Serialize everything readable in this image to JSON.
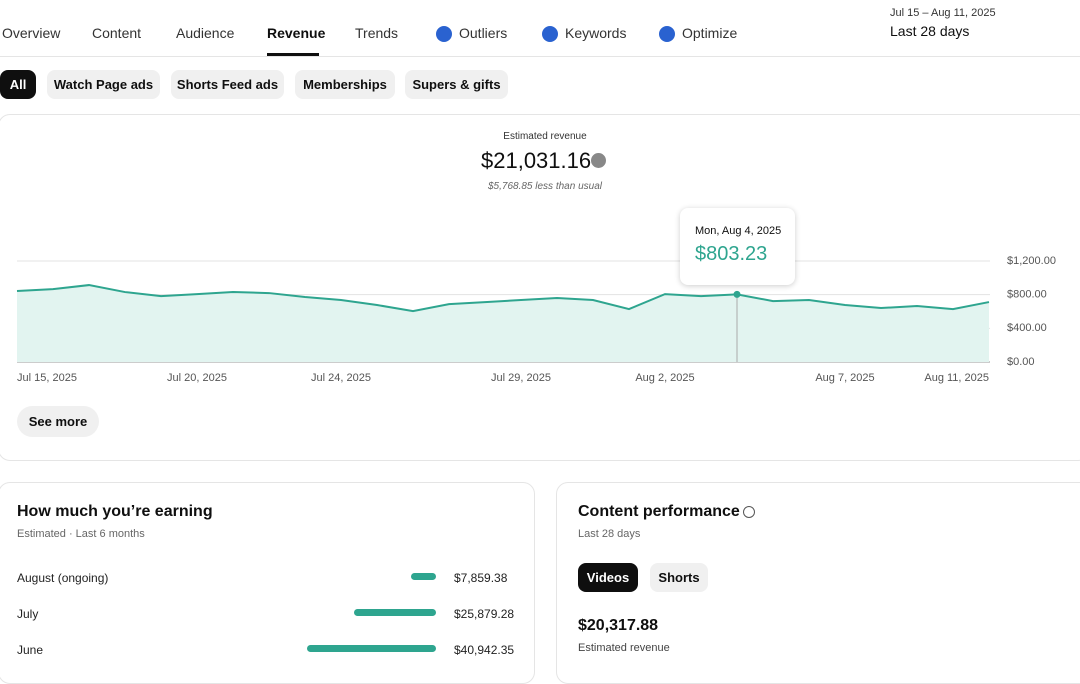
{
  "nav": {
    "tabs": [
      "Overview",
      "Content",
      "Audience",
      "Revenue",
      "Trends",
      "Outliers",
      "Keywords",
      "Optimize"
    ],
    "date_range": "Jul 15 – Aug 11, 2025",
    "period": "Last 28 days"
  },
  "filters": [
    "All",
    "Watch Page ads",
    "Shorts Feed ads",
    "Memberships",
    "Supers & gifts"
  ],
  "summary": {
    "label": "Estimated revenue",
    "value": "$21,031.16",
    "comparison": "$5,768.85 less than usual"
  },
  "chart_data": {
    "type": "area",
    "color": "#2ea58f",
    "categories": [
      "Jul 15, 2025",
      null,
      null,
      null,
      null,
      "Jul 20, 2025",
      null,
      null,
      null,
      "Jul 24, 2025",
      null,
      null,
      null,
      null,
      "Jul 29, 2025",
      null,
      null,
      null,
      "Aug 2, 2025",
      null,
      null,
      null,
      null,
      "Aug 7, 2025",
      null,
      null,
      null,
      "Aug 11, 2025"
    ],
    "values": [
      843,
      866,
      914,
      831,
      783,
      807,
      831,
      819,
      772,
      736,
      677,
      605,
      688,
      712,
      736,
      760,
      736,
      629,
      807,
      783,
      803.23,
      724,
      736,
      677,
      641,
      665,
      629,
      712
    ],
    "value_labels": [
      null,
      null,
      null,
      null,
      null,
      null,
      null,
      null,
      null,
      null,
      null,
      null,
      null,
      null,
      null,
      null,
      null,
      null,
      null,
      null,
      "$803.23",
      null,
      null,
      null,
      null,
      null,
      null,
      null
    ],
    "tooltip_title": "Mon, Aug 4, 2025",
    "ylim": [
      0,
      1200
    ],
    "yticks": [
      {
        "value": 0,
        "label": "$0.00"
      },
      {
        "value": 400,
        "label": "$400.00"
      },
      {
        "value": 800,
        "label": "$800.00"
      },
      {
        "value": 1200,
        "label": "$1,200.00"
      }
    ],
    "grid": true
  },
  "see_more": "See more",
  "earnings": {
    "title": "How much you’re earning",
    "subtitle": "Estimated · Last 6 months",
    "color": "#2ea58f",
    "rows": [
      {
        "label": "August (ongoing)",
        "value": 7859.38,
        "value_label": "$7,859.38"
      },
      {
        "label": "July",
        "value": 25879.28,
        "value_label": "$25,879.28"
      },
      {
        "label": "June",
        "value": 40942.35,
        "value_label": "$40,942.35"
      }
    ]
  },
  "content_performance": {
    "title": "Content performance",
    "subtitle": "Last 28 days",
    "chips": [
      "Videos",
      "Shorts"
    ],
    "value": "$20,317.88",
    "value_label": "Estimated revenue"
  }
}
